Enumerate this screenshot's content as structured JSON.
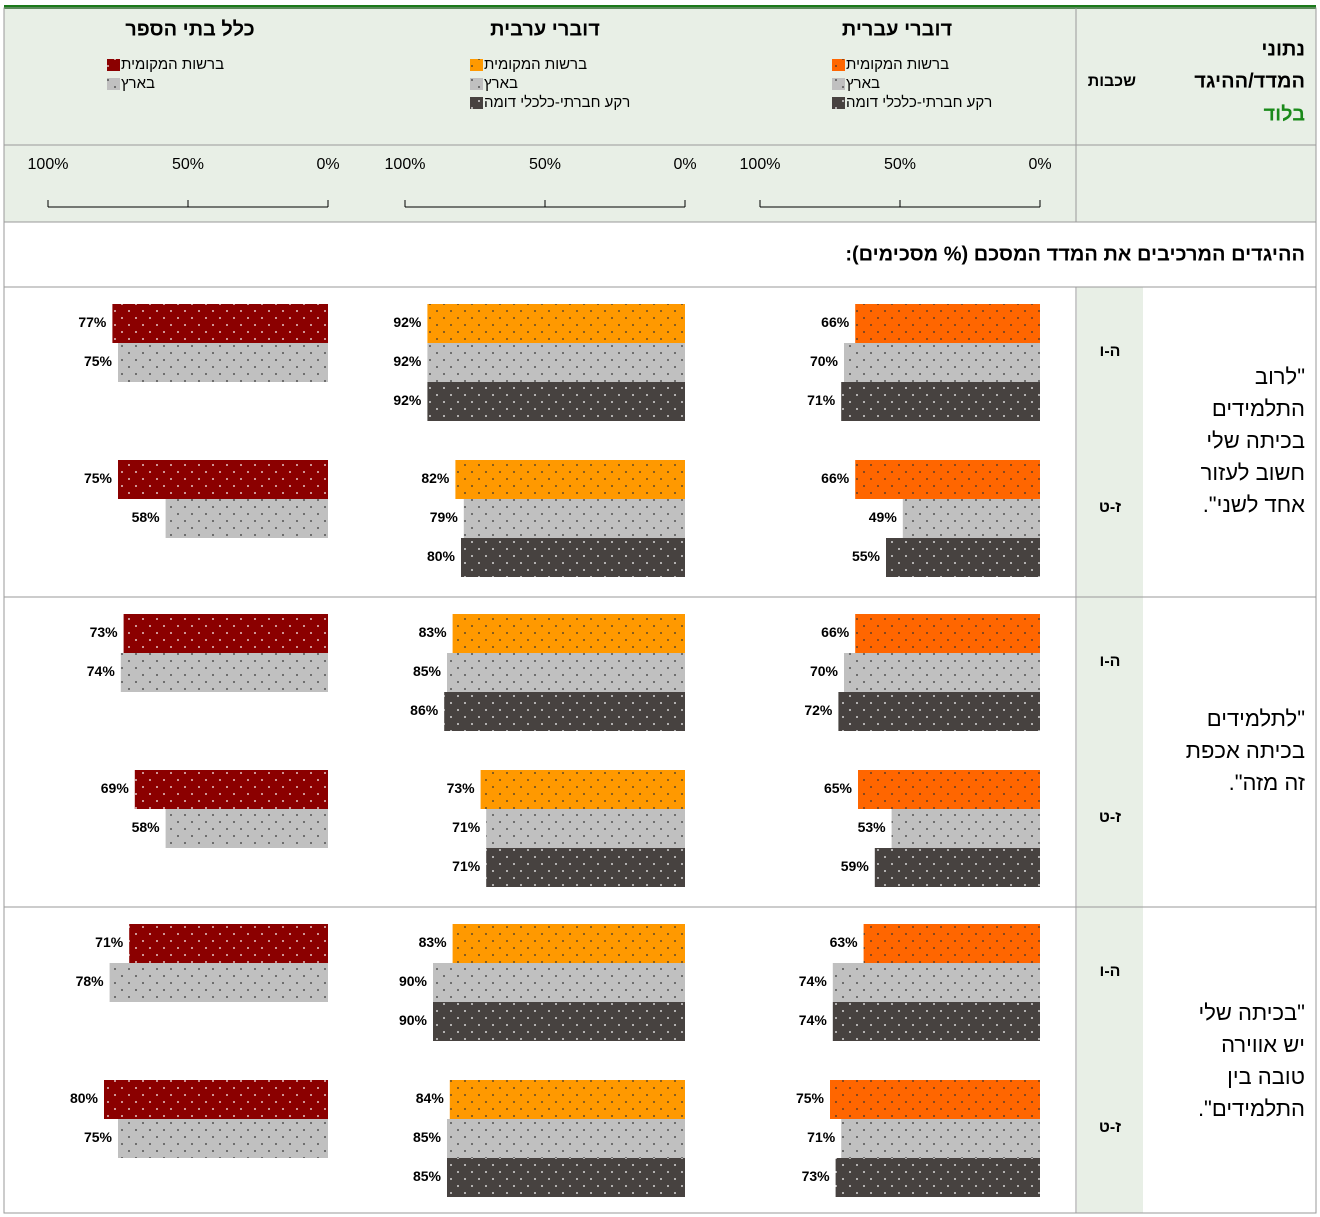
{
  "header": {
    "title_lines": [
      "נתוני",
      "המדד/ההיגד",
      "בלוד"
    ],
    "layers_label": "שכבות"
  },
  "groups": [
    {
      "name": "דוברי עברית",
      "legend": [
        {
          "name": "ברשות המקומית",
          "color": "#ff6600"
        },
        {
          "name": "בארץ",
          "color": "#c0c0c0"
        },
        {
          "name": "רקע חברתי-כלכלי דומה",
          "color": "#474240"
        }
      ]
    },
    {
      "name": "דוברי ערבית",
      "legend": [
        {
          "name": "ברשות המקומית",
          "color": "#ff9900"
        },
        {
          "name": "בארץ",
          "color": "#c0c0c0"
        },
        {
          "name": "רקע חברתי-כלכלי דומה",
          "color": "#474240"
        }
      ]
    },
    {
      "name": "כלל בתי הספר",
      "legend": [
        {
          "name": "ברשות המקומית",
          "color": "#8b0000"
        },
        {
          "name": "בארץ",
          "color": "#c0c0c0"
        }
      ]
    }
  ],
  "xlim": [
    0,
    100
  ],
  "xticks": [
    {
      "value": 0,
      "label": "0%"
    },
    {
      "value": 50,
      "label": "50%"
    },
    {
      "value": 100,
      "label": "100%"
    }
  ],
  "section_title": "ההיגדים המרכיבים את המדד המסכם (% מסכימים):",
  "items": [
    {
      "statement_lines": [
        "\"לרוב",
        "התלמידים",
        "בכיתה שלי",
        "חשוב לעזור",
        "אחד לשני\"."
      ],
      "grades": [
        {
          "name": "ה-ו",
          "groups": [
            {
              "values": [
                66,
                70,
                71
              ],
              "value_labels": [
                "66%",
                "70%",
                "71%"
              ]
            },
            {
              "values": [
                92,
                92,
                92
              ],
              "value_labels": [
                "92%",
                "92%",
                "92%"
              ]
            },
            {
              "values": [
                77,
                75
              ],
              "value_labels": [
                "77%",
                "75%"
              ]
            }
          ]
        },
        {
          "name": "ז-ט",
          "groups": [
            {
              "values": [
                66,
                49,
                55
              ],
              "value_labels": [
                "66%",
                "49%",
                "55%"
              ]
            },
            {
              "values": [
                82,
                79,
                80
              ],
              "value_labels": [
                "82%",
                "79%",
                "80%"
              ]
            },
            {
              "values": [
                75,
                58
              ],
              "value_labels": [
                "75%",
                "58%"
              ]
            }
          ]
        }
      ]
    },
    {
      "statement_lines": [
        "\"לתלמידים",
        "בכיתה אכפת",
        "זה מזה\"."
      ],
      "grades": [
        {
          "name": "ה-ו",
          "groups": [
            {
              "values": [
                66,
                70,
                72
              ],
              "value_labels": [
                "66%",
                "70%",
                "72%"
              ]
            },
            {
              "values": [
                83,
                85,
                86
              ],
              "value_labels": [
                "83%",
                "85%",
                "86%"
              ]
            },
            {
              "values": [
                73,
                74
              ],
              "value_labels": [
                "73%",
                "74%"
              ]
            }
          ]
        },
        {
          "name": "ז-ט",
          "groups": [
            {
              "values": [
                65,
                53,
                59
              ],
              "value_labels": [
                "65%",
                "53%",
                "59%"
              ]
            },
            {
              "values": [
                73,
                71,
                71
              ],
              "value_labels": [
                "73%",
                "71%",
                "71%"
              ]
            },
            {
              "values": [
                69,
                58
              ],
              "value_labels": [
                "69%",
                "58%"
              ]
            }
          ]
        }
      ]
    },
    {
      "statement_lines": [
        "\"בכיתה שלי",
        "יש אווירה",
        "טובה בין",
        "התלמידים\"."
      ],
      "grades": [
        {
          "name": "ה-ו",
          "groups": [
            {
              "values": [
                63,
                74,
                74
              ],
              "value_labels": [
                "63%",
                "74%",
                "74%"
              ]
            },
            {
              "values": [
                83,
                90,
                90
              ],
              "value_labels": [
                "83%",
                "90%",
                "90%"
              ]
            },
            {
              "values": [
                71,
                78
              ],
              "value_labels": [
                "71%",
                "78%"
              ]
            }
          ]
        },
        {
          "name": "ז-ט",
          "groups": [
            {
              "values": [
                75,
                71,
                73
              ],
              "value_labels": [
                "75%",
                "71%",
                "73%"
              ]
            },
            {
              "values": [
                84,
                85,
                85
              ],
              "value_labels": [
                "84%",
                "85%",
                "85%"
              ]
            },
            {
              "values": [
                80,
                75
              ],
              "value_labels": [
                "80%",
                "75%"
              ]
            }
          ]
        }
      ]
    }
  ]
}
